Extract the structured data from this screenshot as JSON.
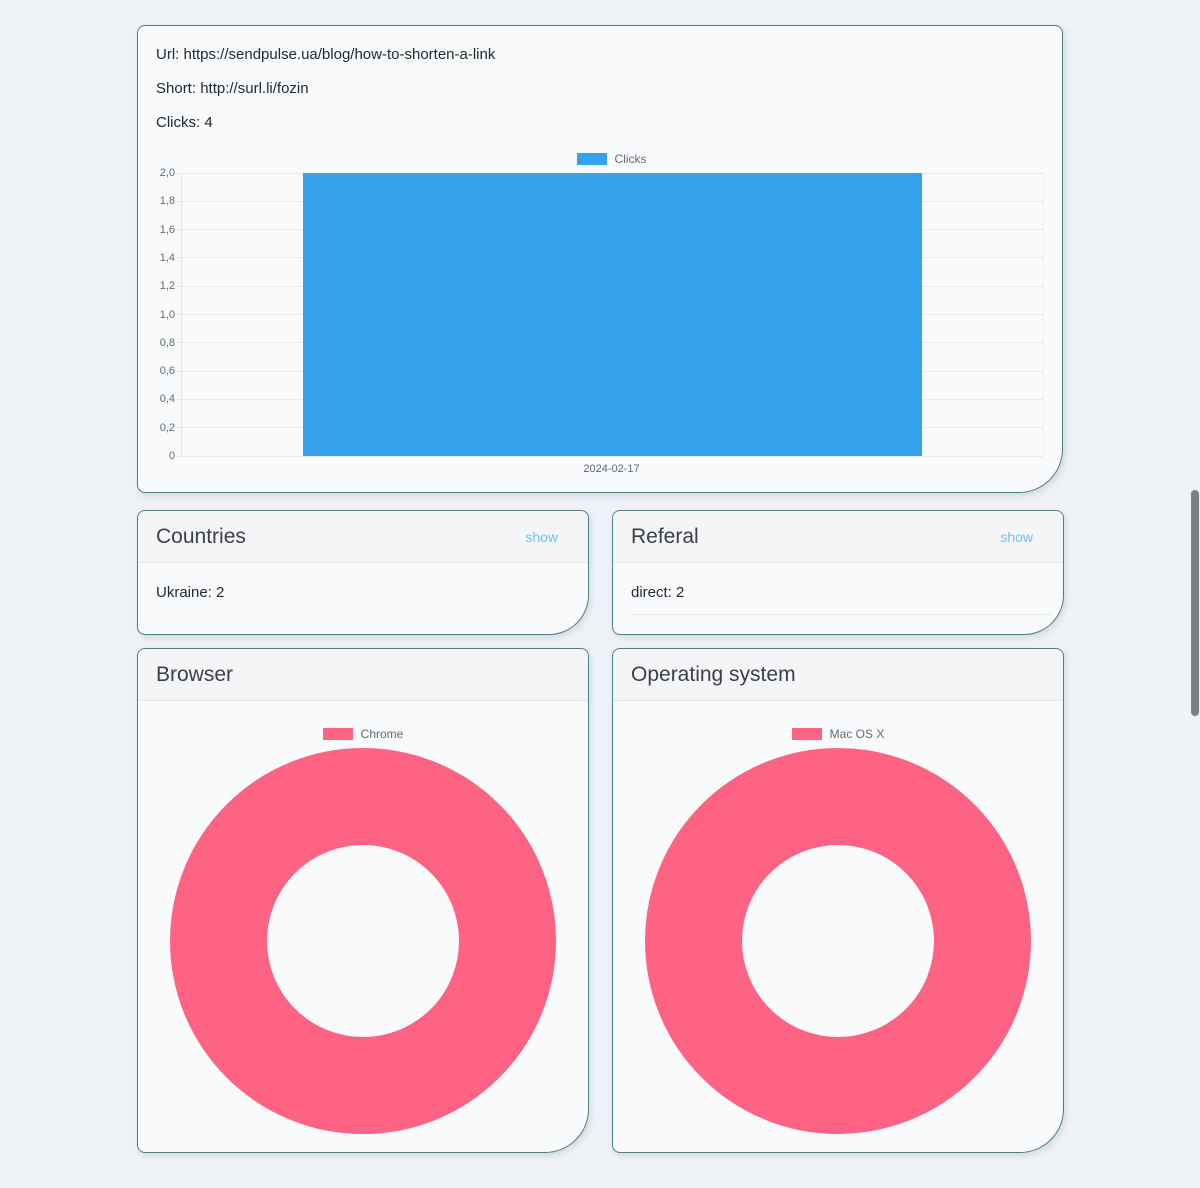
{
  "link_card": {
    "url_label": "Url:",
    "url_value": "https://sendpulse.ua/blog/how-to-shorten-a-link",
    "short_label": "Short:",
    "short_value": "http://surl.li/fozin",
    "clicks_label": "Clicks:",
    "clicks_value": "4"
  },
  "cards": {
    "countries": {
      "title": "Countries",
      "action_label": "show",
      "items": [
        "Ukraine: 2"
      ]
    },
    "referal": {
      "title": "Referal",
      "action_label": "show",
      "items": [
        "direct: 2"
      ]
    },
    "browser": {
      "title": "Browser"
    },
    "operating_system": {
      "title": "Operating system"
    }
  },
  "chart_data": [
    {
      "id": "clicks-by-date",
      "type": "bar",
      "categories": [
        "2024-02-17"
      ],
      "series": [
        {
          "name": "Clicks",
          "values": [
            2
          ],
          "color": "#36a2eb"
        }
      ],
      "ylim": [
        0,
        2
      ],
      "ytick_labels": [
        "2,0",
        "1,8",
        "1,6",
        "1,4",
        "1,2",
        "1,0",
        "0,8",
        "0,6",
        "0,4",
        "0,2",
        "0"
      ],
      "xlabel": "",
      "ylabel": "",
      "grid": true,
      "legend_position": "top"
    },
    {
      "id": "browser-share",
      "type": "pie",
      "subtype": "doughnut",
      "labels": [
        "Chrome"
      ],
      "fractions": [
        1
      ],
      "colors": [
        "#ff6384"
      ],
      "legend_position": "top"
    },
    {
      "id": "os-share",
      "type": "pie",
      "subtype": "doughnut",
      "labels": [
        "Mac OS X"
      ],
      "fractions": [
        1
      ],
      "colors": [
        "#ff6384"
      ],
      "legend_position": "top"
    }
  ],
  "colors": {
    "accent_blue": "#36a2eb",
    "accent_pink": "#ff6384",
    "card_border_teal": "#4e7f80",
    "link_blue": "#74c0ec",
    "page_background": "#eef1f6"
  }
}
